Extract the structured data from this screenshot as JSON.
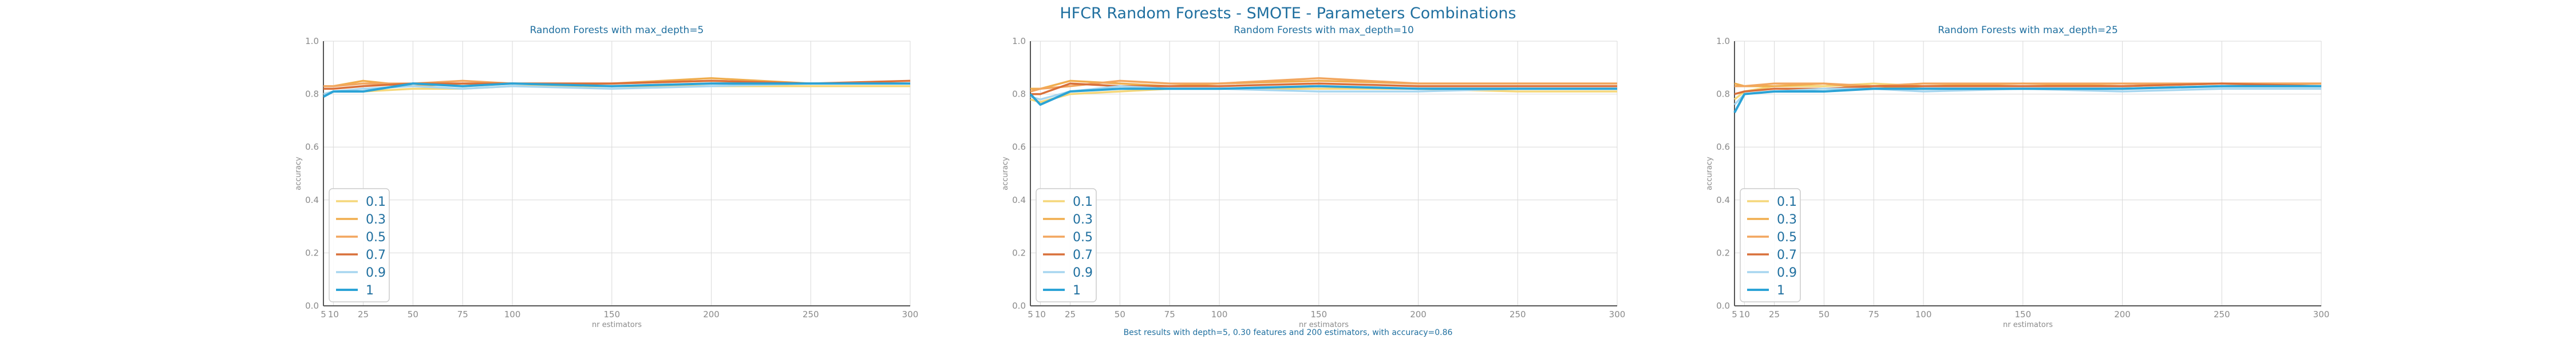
{
  "title": "HFCR Random Forests - SMOTE - Parameters Combinations",
  "caption": "Best results with depth=5, 0.30 features and 200 estimators, with accuracy=0.86",
  "colors": {
    "title": "#1f6f9f",
    "grid": "#d9d9d9",
    "axis": "#555555",
    "tick": "#8a8a8a",
    "legend_frame": "#cccccc"
  },
  "chart_data": [
    {
      "type": "line",
      "title": "Random Forests with max_depth=5",
      "xlabel": "nr estimators",
      "ylabel": "accuracy",
      "x": [
        5,
        10,
        25,
        50,
        75,
        100,
        150,
        200,
        250,
        300
      ],
      "x_ticks": [
        5,
        10,
        25,
        50,
        75,
        100,
        150,
        200,
        250,
        300
      ],
      "y_ticks": [
        "0.0",
        "0.2",
        "0.4",
        "0.6",
        "0.8",
        "1.0"
      ],
      "xlim": [
        5,
        300
      ],
      "ylim": [
        0,
        1
      ],
      "grid": true,
      "legend_position": "lower-left",
      "series": [
        {
          "name": "0.1",
          "color": "#f5d77a",
          "values": [
            0.8,
            0.81,
            0.81,
            0.82,
            0.82,
            0.83,
            0.83,
            0.83,
            0.83,
            0.83
          ]
        },
        {
          "name": "0.3",
          "color": "#f0ad4e",
          "values": [
            0.83,
            0.83,
            0.85,
            0.83,
            0.84,
            0.84,
            0.84,
            0.86,
            0.84,
            0.84
          ]
        },
        {
          "name": "0.5",
          "color": "#f2a65e",
          "values": [
            0.83,
            0.83,
            0.84,
            0.84,
            0.85,
            0.84,
            0.84,
            0.85,
            0.84,
            0.84
          ]
        },
        {
          "name": "0.7",
          "color": "#d9703a",
          "values": [
            0.82,
            0.82,
            0.83,
            0.84,
            0.84,
            0.84,
            0.84,
            0.85,
            0.84,
            0.85
          ]
        },
        {
          "name": "0.9",
          "color": "#a7d6ef",
          "values": [
            0.8,
            0.81,
            0.82,
            0.83,
            0.82,
            0.83,
            0.82,
            0.83,
            0.84,
            0.84
          ]
        },
        {
          "name": "1",
          "color": "#2ba3d6",
          "values": [
            0.79,
            0.81,
            0.81,
            0.84,
            0.83,
            0.84,
            0.83,
            0.84,
            0.84,
            0.84
          ]
        }
      ]
    },
    {
      "type": "line",
      "title": "Random Forests with max_depth=10",
      "xlabel": "nr estimators",
      "ylabel": "accuracy",
      "x": [
        5,
        10,
        25,
        50,
        75,
        100,
        150,
        200,
        250,
        300
      ],
      "x_ticks": [
        5,
        10,
        25,
        50,
        75,
        100,
        150,
        200,
        250,
        300
      ],
      "y_ticks": [
        "0.0",
        "0.2",
        "0.4",
        "0.6",
        "0.8",
        "1.0"
      ],
      "xlim": [
        5,
        300
      ],
      "ylim": [
        0,
        1
      ],
      "grid": true,
      "legend_position": "lower-left",
      "series": [
        {
          "name": "0.1",
          "color": "#f5d77a",
          "values": [
            0.78,
            0.77,
            0.8,
            0.81,
            0.82,
            0.82,
            0.82,
            0.82,
            0.81,
            0.81
          ]
        },
        {
          "name": "0.3",
          "color": "#f0ad4e",
          "values": [
            0.82,
            0.82,
            0.85,
            0.84,
            0.83,
            0.84,
            0.85,
            0.84,
            0.84,
            0.84
          ]
        },
        {
          "name": "0.5",
          "color": "#f2a65e",
          "values": [
            0.81,
            0.82,
            0.83,
            0.85,
            0.84,
            0.84,
            0.86,
            0.84,
            0.84,
            0.84
          ]
        },
        {
          "name": "0.7",
          "color": "#d9703a",
          "values": [
            0.8,
            0.8,
            0.84,
            0.83,
            0.83,
            0.83,
            0.84,
            0.83,
            0.83,
            0.83
          ]
        },
        {
          "name": "0.9",
          "color": "#a7d6ef",
          "values": [
            0.79,
            0.78,
            0.81,
            0.83,
            0.82,
            0.82,
            0.81,
            0.81,
            0.82,
            0.82
          ]
        },
        {
          "name": "1",
          "color": "#2ba3d6",
          "values": [
            0.8,
            0.76,
            0.81,
            0.82,
            0.82,
            0.82,
            0.83,
            0.82,
            0.82,
            0.82
          ]
        }
      ]
    },
    {
      "type": "line",
      "title": "Random Forests with max_depth=25",
      "xlabel": "nr estimators",
      "ylabel": "accuracy",
      "x": [
        5,
        10,
        25,
        50,
        75,
        100,
        150,
        200,
        250,
        300
      ],
      "x_ticks": [
        5,
        10,
        25,
        50,
        75,
        100,
        150,
        200,
        250,
        300
      ],
      "y_ticks": [
        "0.0",
        "0.2",
        "0.4",
        "0.6",
        "0.8",
        "1.0"
      ],
      "xlim": [
        5,
        300
      ],
      "ylim": [
        0,
        1
      ],
      "grid": true,
      "legend_position": "lower-left",
      "series": [
        {
          "name": "0.1",
          "color": "#f5d77a",
          "values": [
            0.78,
            0.81,
            0.83,
            0.83,
            0.84,
            0.83,
            0.83,
            0.83,
            0.84,
            0.83
          ]
        },
        {
          "name": "0.3",
          "color": "#f0ad4e",
          "values": [
            0.84,
            0.83,
            0.83,
            0.84,
            0.82,
            0.83,
            0.84,
            0.83,
            0.84,
            0.84
          ]
        },
        {
          "name": "0.5",
          "color": "#f2a65e",
          "values": [
            0.83,
            0.83,
            0.84,
            0.84,
            0.83,
            0.84,
            0.84,
            0.84,
            0.84,
            0.84
          ]
        },
        {
          "name": "0.7",
          "color": "#d9703a",
          "values": [
            0.8,
            0.81,
            0.82,
            0.82,
            0.83,
            0.83,
            0.83,
            0.83,
            0.84,
            0.83
          ]
        },
        {
          "name": "0.9",
          "color": "#a7d6ef",
          "values": [
            0.76,
            0.8,
            0.81,
            0.82,
            0.82,
            0.81,
            0.82,
            0.81,
            0.82,
            0.82
          ]
        },
        {
          "name": "1",
          "color": "#2ba3d6",
          "values": [
            0.73,
            0.8,
            0.81,
            0.81,
            0.82,
            0.82,
            0.82,
            0.82,
            0.83,
            0.83
          ]
        }
      ]
    }
  ]
}
